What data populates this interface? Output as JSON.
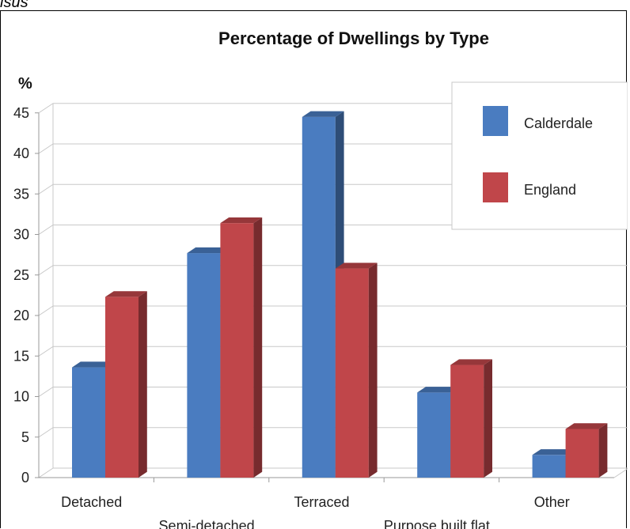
{
  "caption": "isus",
  "chart_data": {
    "type": "bar",
    "title": "Percentage of Dwellings by Type",
    "ylabel": "%",
    "xlabel": "",
    "categories": [
      "Detached",
      "Semi-detached",
      "Terraced",
      "Purpose built flat",
      "Other"
    ],
    "series": [
      {
        "name": "Calderdale",
        "values": [
          13.6,
          27.7,
          44.5,
          10.5,
          2.8
        ],
        "color": "#4a7cc0"
      },
      {
        "name": "England",
        "values": [
          22.3,
          31.4,
          25.8,
          13.9,
          6.0
        ],
        "color": "#c0464a"
      }
    ],
    "ylim": [
      0,
      45
    ],
    "yticks": [
      0,
      5,
      10,
      15,
      20,
      25,
      30,
      35,
      40,
      45
    ],
    "grid": true,
    "legend_position": "top-right",
    "style": "3d"
  }
}
